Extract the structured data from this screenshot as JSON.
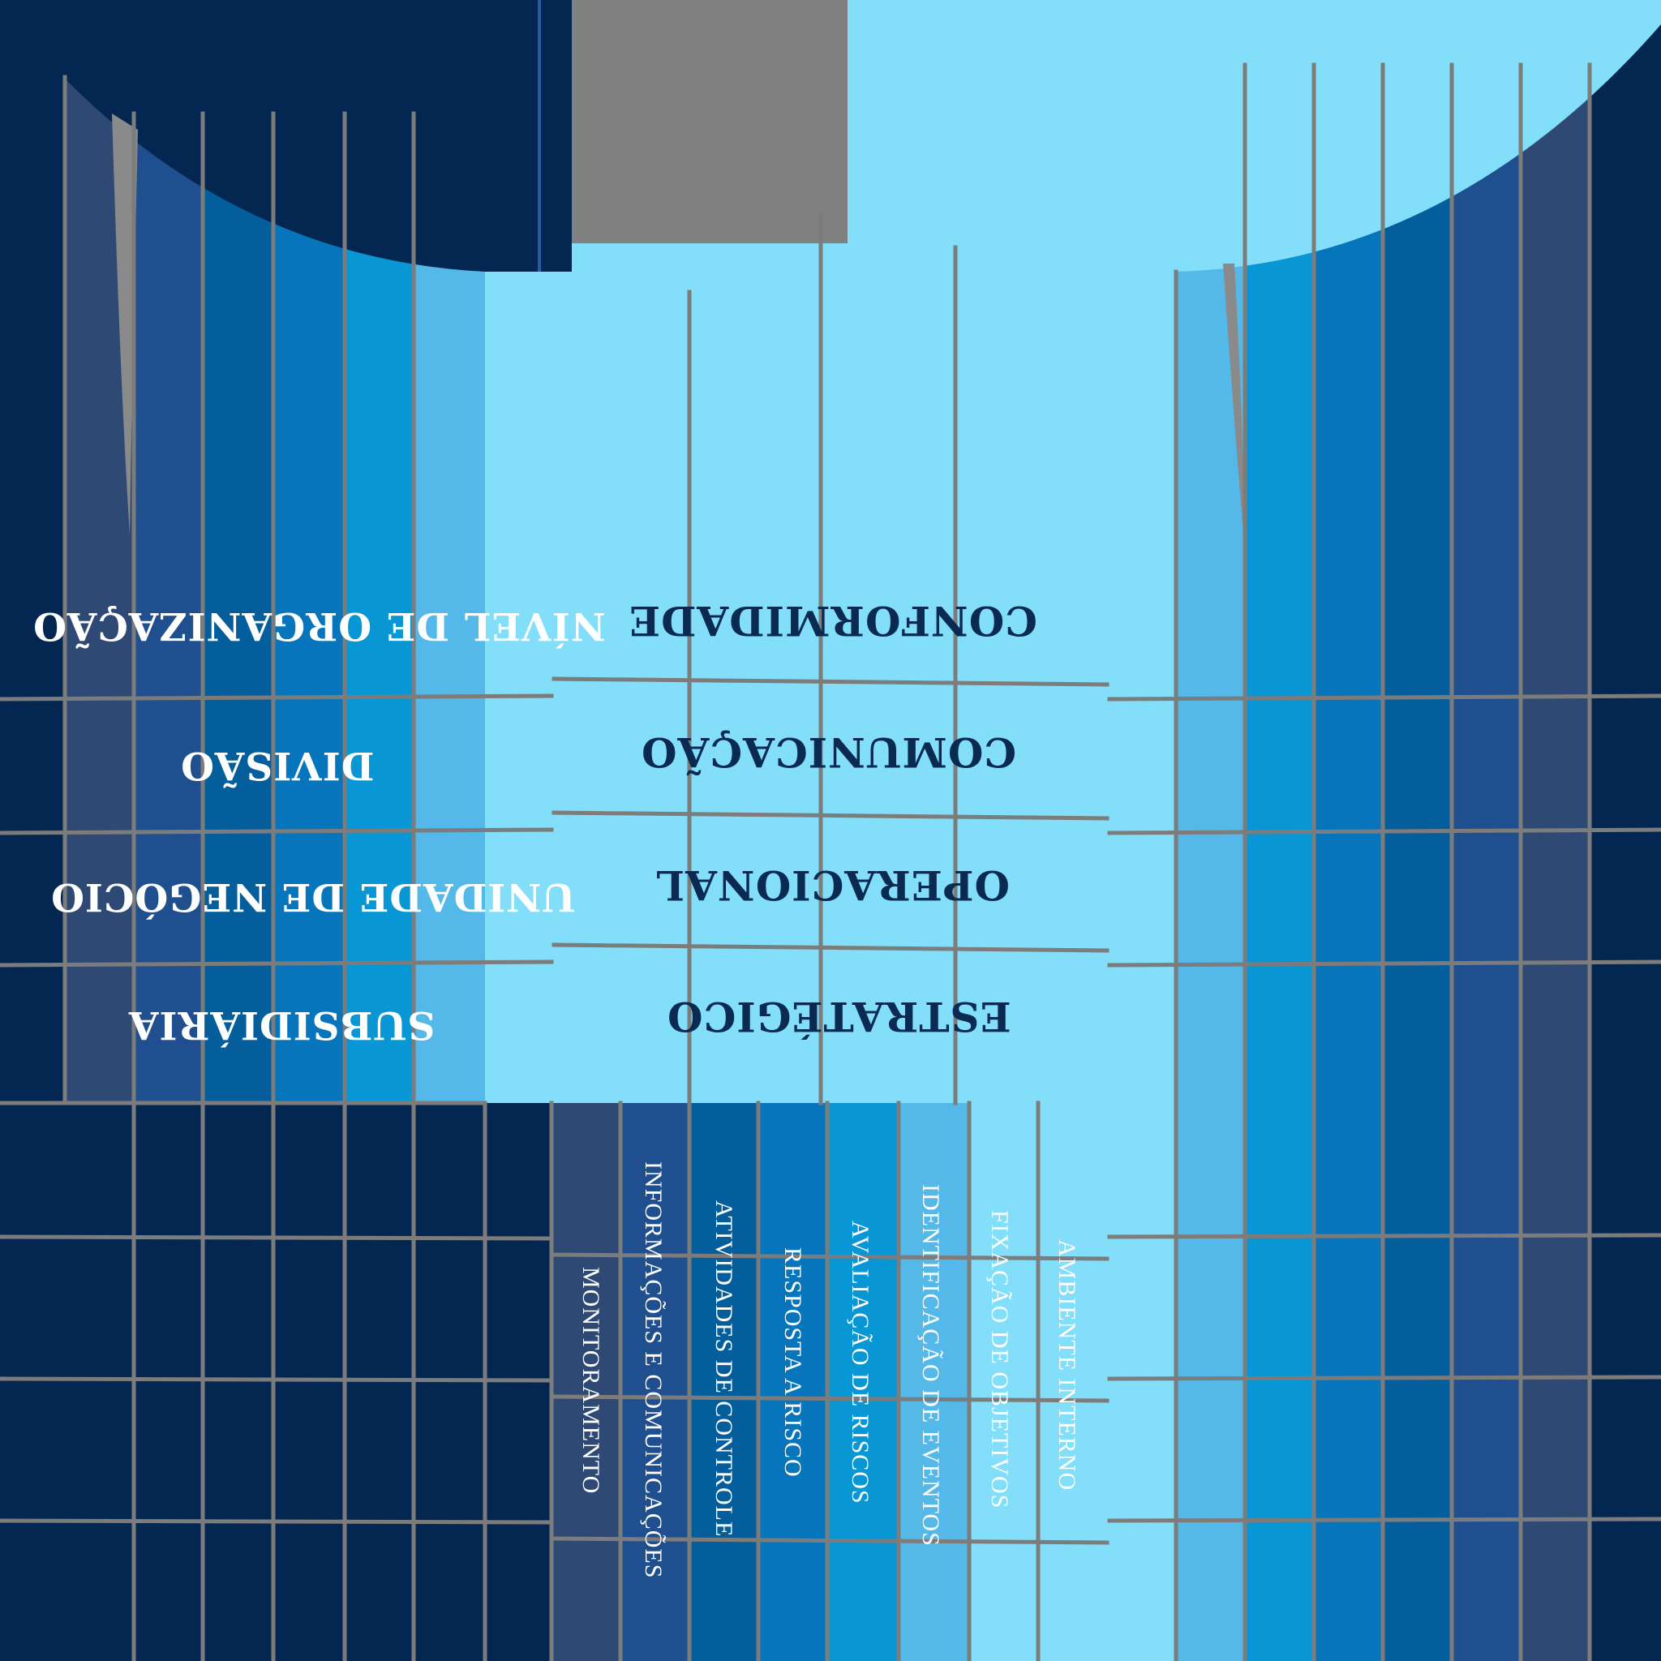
{
  "diagram": {
    "entity_levels": [
      "NÍVEL DE ORGANIZAÇÃO",
      "DIVISÃO",
      "UNIDADE DE NEGÓCIO",
      "SUBSIDIÁRIA"
    ],
    "objective_categories": [
      "CONFORMIDADE",
      "COMUNICAÇÃO",
      "OPERACIONAL",
      "ESTRATÉGICO"
    ],
    "components": [
      "MONITORAMENTO",
      "INFORMAÇÕES E COMUNICAÇÕES",
      "ATIVIDADES DE CONTROLE",
      "RESPOSTA A RISCO",
      "AVALIAÇÃO DE RISCOS",
      "IDENTIFICAÇÃO DE EVENTOS",
      "FIXAÇÃO DE OBJETIVOS",
      "AMBIENTE INTERNO"
    ]
  },
  "colors": {
    "background": "#032750",
    "gray": "#808080",
    "grid_line": "#7c7c7c",
    "cube_front": "#82def9",
    "category_text": "#0a2a52",
    "label_text": "#ffffff",
    "band_1": "#2e4a74",
    "band_2": "#1f4f8e",
    "band_3": "#045e9c",
    "band_4": "#0675bb",
    "band_5": "#0896d4",
    "band_6": "#54b9e8",
    "band_7": "#82def9"
  }
}
